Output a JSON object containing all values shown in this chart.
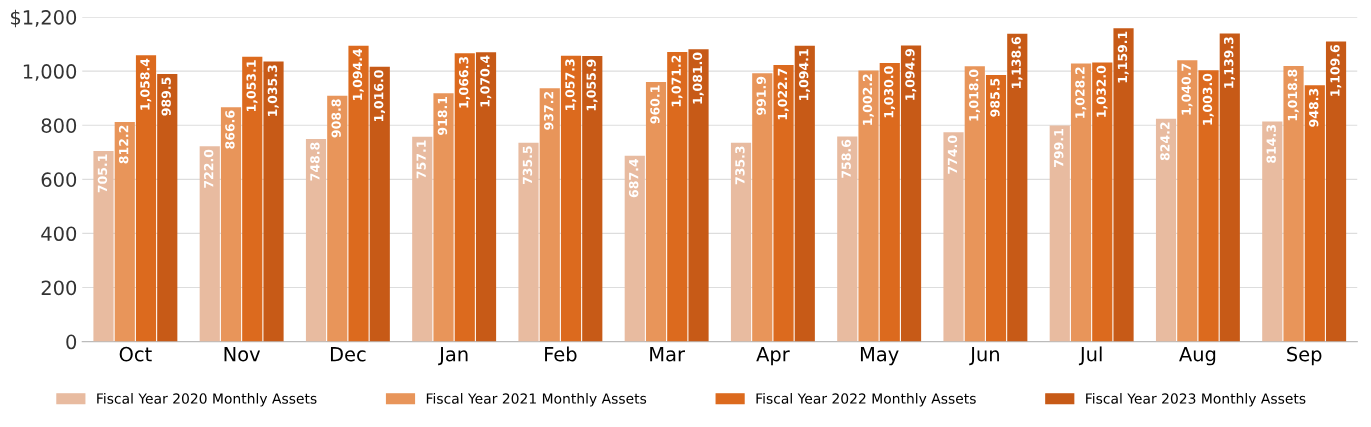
{
  "chart_data": {
    "type": "bar",
    "categories": [
      "Oct",
      "Nov",
      "Dec",
      "Jan",
      "Feb",
      "Mar",
      "Apr",
      "May",
      "Jun",
      "Jul",
      "Aug",
      "Sep"
    ],
    "series": [
      {
        "name": "Fiscal Year 2020 Monthly Assets",
        "color": "#e8bba0",
        "values": [
          705.1,
          722.0,
          748.8,
          757.1,
          735.5,
          687.4,
          735.3,
          758.6,
          774.0,
          799.1,
          824.2,
          814.3
        ],
        "value_labels": [
          "705.1",
          "722.0",
          "748.8",
          "757.1",
          "735.5",
          "687.4",
          "735.3",
          "758.6",
          "774.0",
          "799.1",
          "824.2",
          "814.3"
        ]
      },
      {
        "name": "Fiscal Year 2021 Monthly Assets",
        "color": "#e8955a",
        "values": [
          812.2,
          866.6,
          908.8,
          918.1,
          937.2,
          960.1,
          991.9,
          1002.2,
          1018.0,
          1028.2,
          1040.7,
          1018.8
        ],
        "value_labels": [
          "812.2",
          "866.6",
          "908.8",
          "918.1",
          "937.2",
          "960.1",
          "991.9",
          "1,002.2",
          "1,018.0",
          "1,028.2",
          "1,040.7",
          "1,018.8"
        ]
      },
      {
        "name": "Fiscal Year 2022 Monthly Assets",
        "color": "#dc6a1e",
        "values": [
          1058.4,
          1053.1,
          1094.4,
          1066.3,
          1057.3,
          1071.2,
          1022.7,
          1030.0,
          985.5,
          1032.0,
          1003.0,
          948.3
        ],
        "value_labels": [
          "1,058.4",
          "1,053.1",
          "1,094.4",
          "1,066.3",
          "1,057.3",
          "1,071.2",
          "1,022.7",
          "1,030.0",
          "985.5",
          "1,032.0",
          "1,003.0",
          "948.3"
        ]
      },
      {
        "name": "Fiscal Year 2023 Monthly Assets",
        "color": "#c75a17",
        "values": [
          989.5,
          1035.3,
          1016.0,
          1070.4,
          1055.9,
          1081.0,
          1094.1,
          1094.9,
          1138.6,
          1159.1,
          1139.3,
          1109.6
        ],
        "value_labels": [
          "989.5",
          "1,035.3",
          "1,016.0",
          "1,070.4",
          "1,055.9",
          "1,081.0",
          "1,094.1",
          "1,094.9",
          "1,138.6",
          "1,159.1",
          "1,139.3",
          "1,109.6"
        ]
      }
    ],
    "ylim": [
      0,
      1200
    ],
    "yticks": [
      0,
      200,
      400,
      600,
      800,
      {
        "value": 1000,
        "label": "1,000"
      },
      {
        "value": 1200,
        "label": "$1,200"
      }
    ],
    "grid": "y",
    "legend": "bottom"
  }
}
